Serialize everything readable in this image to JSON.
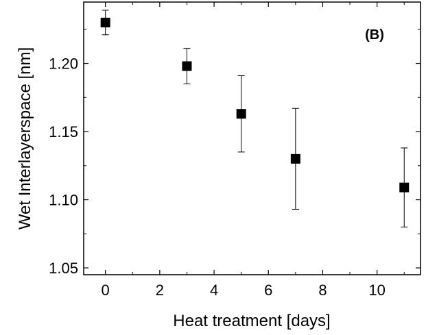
{
  "chart_data": {
    "type": "scatter",
    "annotation": "(B)",
    "xlabel": "Heat treatment [days]",
    "ylabel": "Wet Interlayerspace [nm]",
    "xlim": [
      -0.8,
      11.6
    ],
    "ylim": [
      1.045,
      1.245
    ],
    "xticks": [
      0,
      2,
      4,
      6,
      8,
      10
    ],
    "xtick_labels": [
      "0",
      "2",
      "4",
      "6",
      "8",
      "10"
    ],
    "yticks": [
      1.05,
      1.1,
      1.15,
      1.2
    ],
    "ytick_labels": [
      "1.05",
      "1.10",
      "1.15",
      "1.20"
    ],
    "grid": false,
    "marker": "filled-square",
    "marker_color": "#000000",
    "series": [
      {
        "x": [
          0,
          3,
          5,
          7,
          11
        ],
        "y": [
          1.23,
          1.198,
          1.163,
          1.13,
          1.109
        ],
        "yerr": [
          0.009,
          0.013,
          0.028,
          0.037,
          0.029
        ]
      }
    ]
  }
}
